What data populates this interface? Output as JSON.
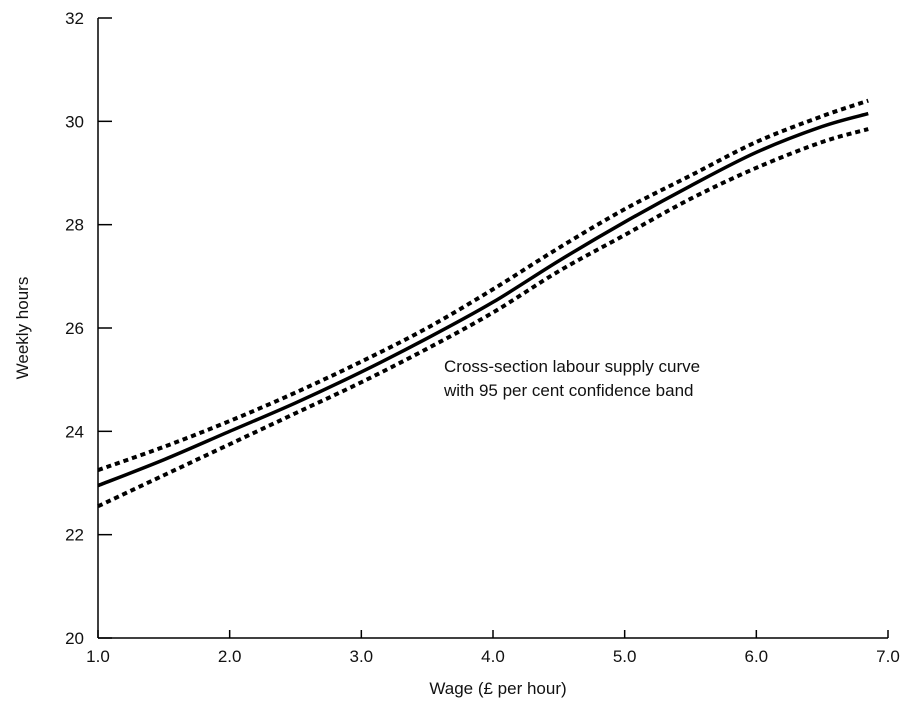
{
  "chart_data": {
    "type": "line",
    "title": "",
    "xlabel": "Wage (£ per hour)",
    "ylabel": "Weekly hours",
    "xlim": [
      1.0,
      7.0
    ],
    "ylim": [
      20,
      32
    ],
    "xticks": [
      "1.0",
      "2.0",
      "3.0",
      "4.0",
      "5.0",
      "6.0",
      "7.0"
    ],
    "yticks": [
      "20",
      "22",
      "24",
      "26",
      "28",
      "30",
      "32"
    ],
    "grid": false,
    "annotation": [
      "Cross-section labour supply curve",
      "with 95 per cent confidence band"
    ],
    "x": [
      1.0,
      1.5,
      2.0,
      2.5,
      3.0,
      3.5,
      4.0,
      4.5,
      5.0,
      5.5,
      6.0,
      6.5,
      6.85
    ],
    "series": [
      {
        "style": "solid",
        "color": "#000000",
        "values": [
          22.95,
          23.45,
          24.0,
          24.55,
          25.15,
          25.8,
          26.5,
          27.3,
          28.05,
          28.75,
          29.4,
          29.9,
          30.15
        ]
      },
      {
        "style": "dotted",
        "color": "#000000",
        "values": [
          23.25,
          23.7,
          24.2,
          24.75,
          25.35,
          26.0,
          26.75,
          27.55,
          28.3,
          28.95,
          29.6,
          30.1,
          30.4
        ]
      },
      {
        "style": "dotted",
        "color": "#000000",
        "values": [
          22.55,
          23.15,
          23.75,
          24.35,
          24.95,
          25.6,
          26.3,
          27.1,
          27.8,
          28.5,
          29.1,
          29.6,
          29.85
        ]
      }
    ]
  }
}
